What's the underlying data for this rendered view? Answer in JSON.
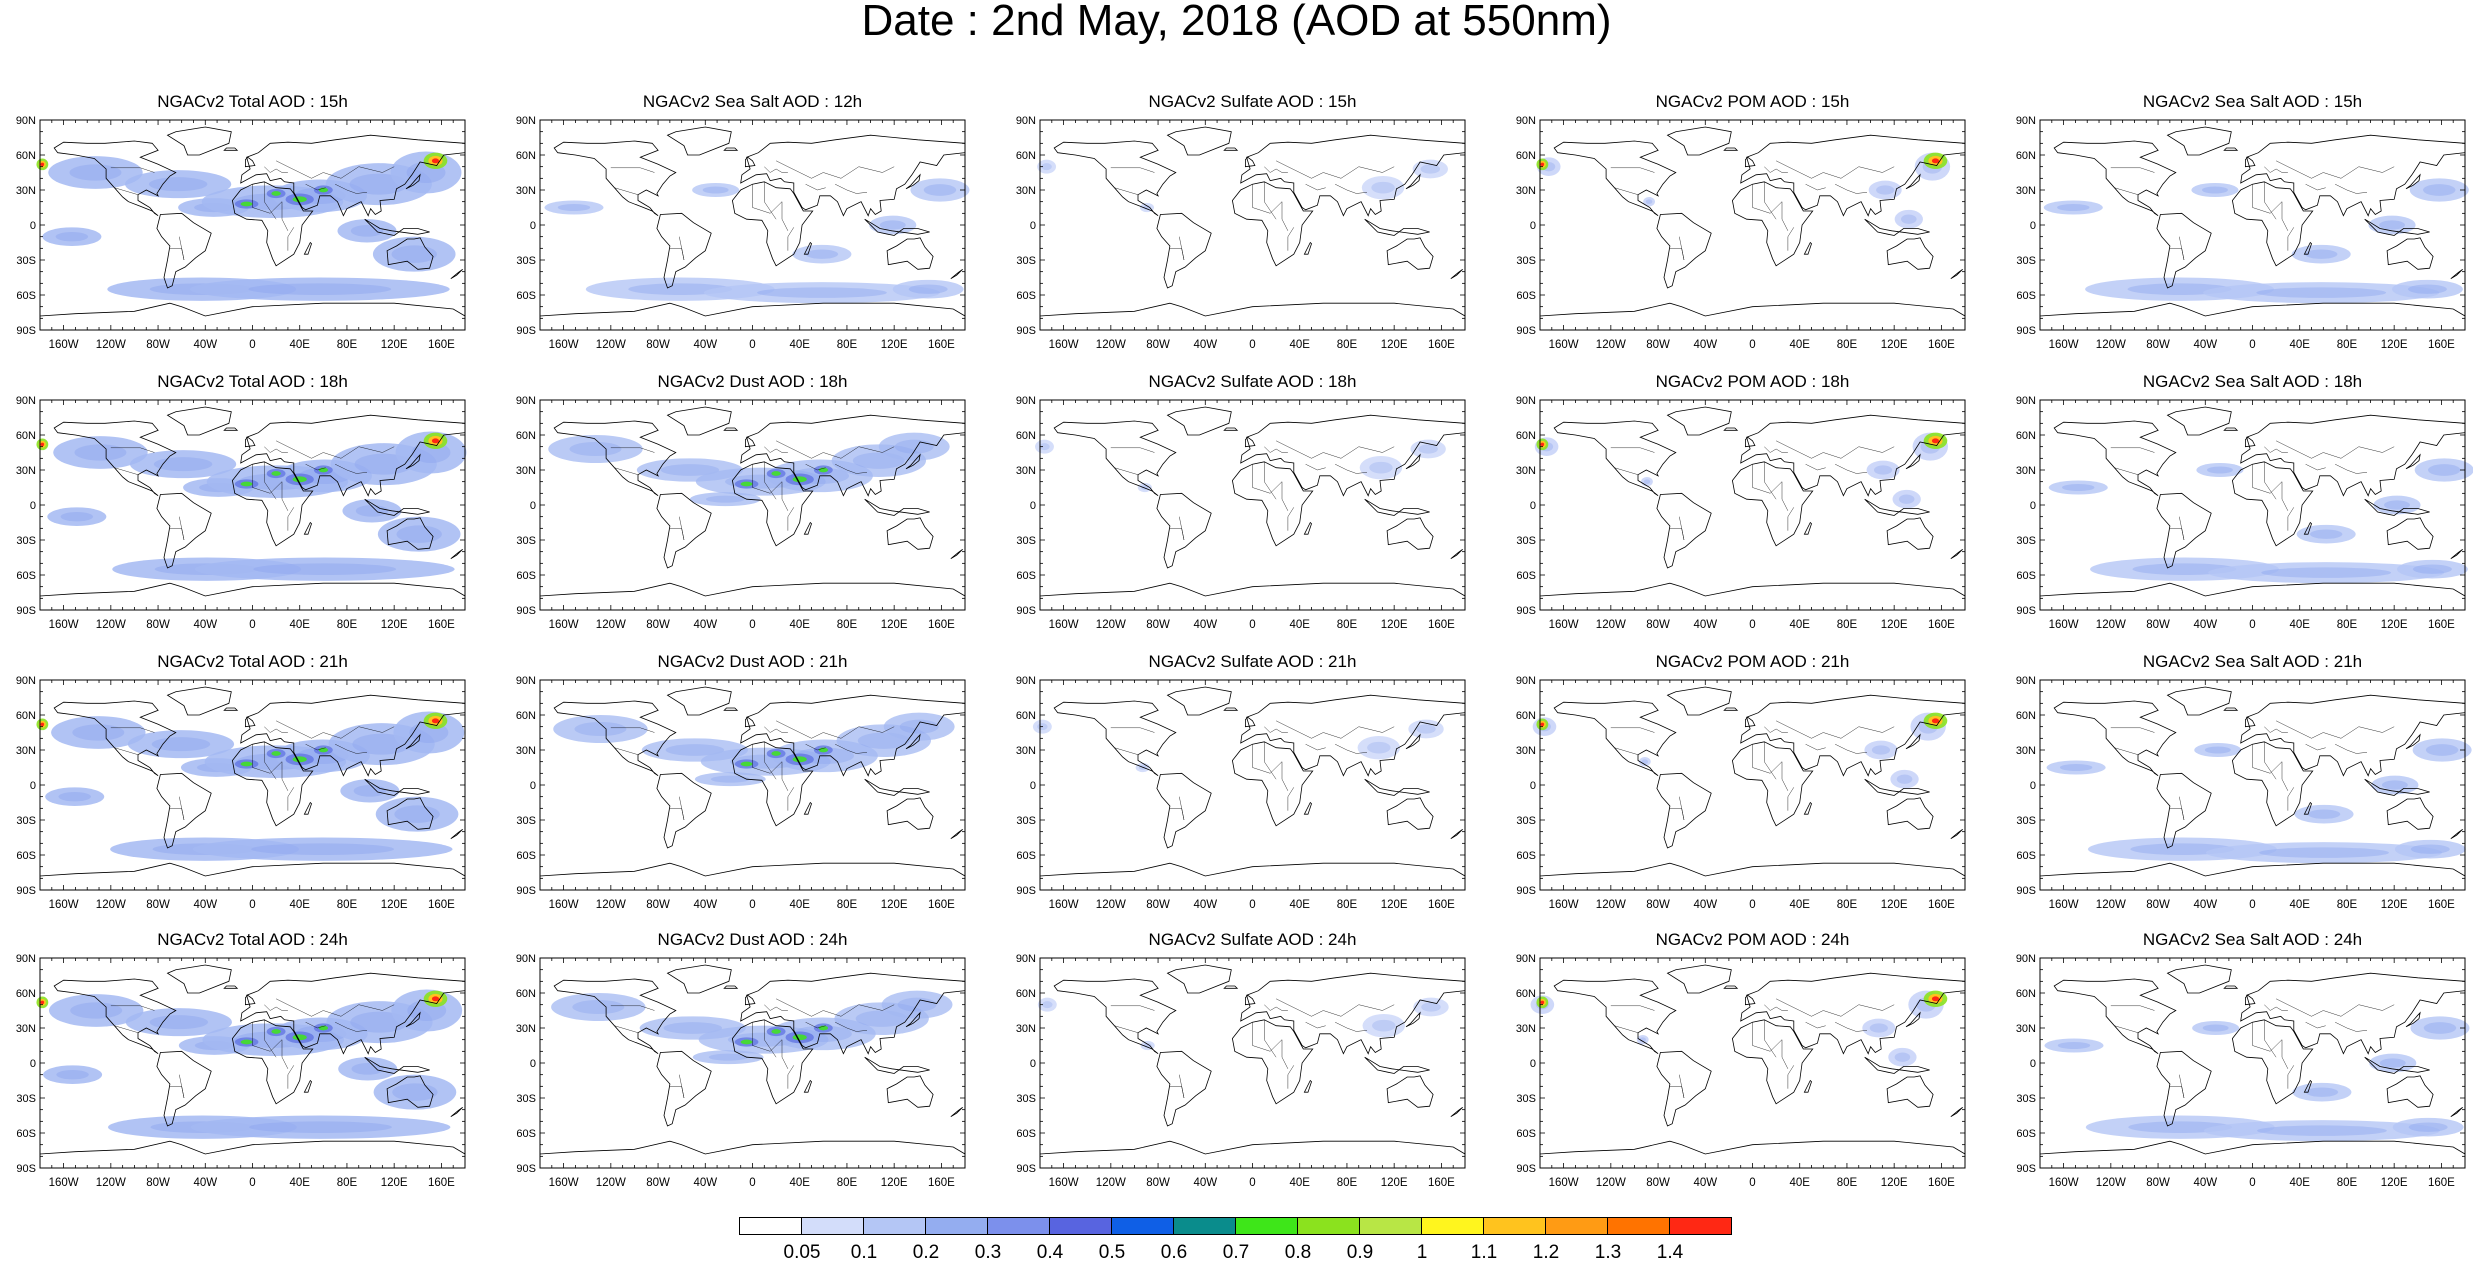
{
  "figure": {
    "title": "Date : 2nd May, 2018 (AOD at 550nm)"
  },
  "axes": {
    "lat_labels": [
      "90N",
      "60N",
      "30N",
      "0",
      "30S",
      "60S",
      "90S"
    ],
    "lon_labels": [
      "160W",
      "120W",
      "80W",
      "40W",
      "0",
      "40E",
      "80E",
      "120E",
      "160E"
    ]
  },
  "panels": [
    [
      "NGACv2 Total AOD : 15h",
      "NGACv2 Sea Salt  AOD : 12h",
      "NGACv2 Sulfate AOD : 15h",
      "NGACv2 POM AOD : 15h",
      "NGACv2 Sea Salt  AOD : 15h"
    ],
    [
      "NGACv2 Total AOD : 18h",
      "NGACv2 Dust AOD : 18h",
      "NGACv2 Sulfate AOD : 18h",
      "NGACv2 POM AOD : 18h",
      "NGACv2 Sea Salt  AOD : 18h"
    ],
    [
      "NGACv2 Total AOD : 21h",
      "NGACv2 Dust AOD : 21h",
      "NGACv2 Sulfate AOD : 21h",
      "NGACv2 POM AOD : 21h",
      "NGACv2 Sea Salt  AOD : 21h"
    ],
    [
      "NGACv2 Total AOD : 24h",
      "NGACv2 Dust AOD : 24h",
      "NGACv2 Sulfate AOD : 24h",
      "NGACv2 POM AOD : 24h",
      "NGACv2 Sea Salt  AOD : 24h"
    ]
  ],
  "colorbar": {
    "labels": [
      "0.05",
      "0.1",
      "0.2",
      "0.3",
      "0.4",
      "0.5",
      "0.6",
      "0.7",
      "0.8",
      "0.9",
      "1",
      "1.1",
      "1.2",
      "1.3",
      "1.4"
    ],
    "colors": [
      "#ffffff",
      "#d3ddfa",
      "#b4c6f5",
      "#94adf0",
      "#7c90ec",
      "#5864e0",
      "#0f5fe6",
      "#0a8c8c",
      "#3ee619",
      "#8be21e",
      "#b8e645",
      "#fff51e",
      "#ffc31e",
      "#ff9b14",
      "#ff7300",
      "#ff2814"
    ]
  },
  "styles": {
    "haze": [
      {
        "name": "total",
        "fill": "#a3b8f2",
        "opacity": 0.85,
        "hot": true,
        "green": true
      },
      {
        "name": "dust",
        "fill": "#a3b8f2",
        "opacity": 0.75,
        "hot": false,
        "green": true
      },
      {
        "name": "sulfate",
        "fill": "#b9c8f6",
        "opacity": 0.6,
        "hot": false,
        "green": false
      },
      {
        "name": "pom",
        "fill": "#b9c8f6",
        "opacity": 0.7,
        "hot": true,
        "green": false
      },
      {
        "name": "seasalt",
        "fill": "#b4c6f5",
        "opacity": 0.8,
        "hot": false,
        "green": false
      }
    ]
  }
}
